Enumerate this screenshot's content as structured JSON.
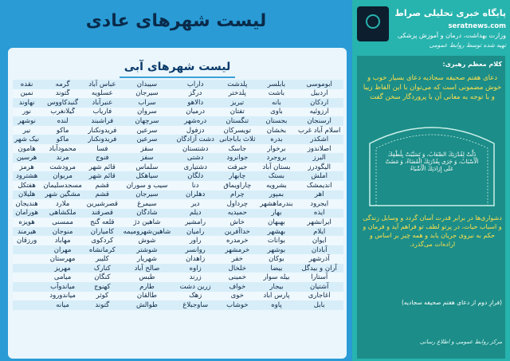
{
  "main": {
    "title": "لیست شهرهای عادی",
    "card_title": "لیست شهرهای آبی"
  },
  "cities": [
    [
      "ابوموسی",
      "بابلسر",
      "پلدشت",
      "داراب",
      "سیبدان",
      "عباس آباد",
      "گرمه",
      "نقده"
    ],
    [
      "اردبیل",
      "باشت",
      "پلدختر",
      "درگز",
      "سیرجان",
      "عسلویه",
      "گتوند",
      "نمین"
    ],
    [
      "اردکان",
      "بانه",
      "تبریز",
      "دالاهو",
      "سراب",
      "عنبرآباد",
      "گنبدکاووس",
      "نهاوند"
    ],
    [
      "ارزوئیه",
      "باوی",
      "تفتان",
      "درمیان",
      "سروان",
      "فاریاب",
      "گیلانغرب",
      "نور"
    ],
    [
      "ارسنجان",
      "بجستان",
      "تنگستان",
      "دره‌شهر",
      "سرچهان",
      "فراشبند",
      "لنده",
      "نوشهر"
    ],
    [
      "اسلام آباد غرب",
      "بخشان",
      "تویسرکان",
      "دزفول",
      "سرعین",
      "فریدونکنار",
      "ماکو",
      "نیر"
    ],
    [
      "اشکذر",
      "بدره",
      "ثلاث باباجانی",
      "دشت آزادگان",
      "سرعین",
      "فریدونکنار",
      "ماکو",
      "نیک شهر"
    ],
    [
      "اصلاندوز",
      "برخوار",
      "جاسک",
      "دشتستان",
      "سقز",
      "فسا",
      "محمودآباد",
      "هامون"
    ],
    [
      "البرز",
      "بروجرد",
      "جوانرود",
      "دشتی",
      "سفز",
      "فنوج",
      "مرند",
      "هرسین"
    ],
    [
      "الیگودرز",
      "بستان آباد",
      "جیرفت",
      "دشتیاری",
      "سلماس",
      "قائم شهر",
      "مرودشت",
      "هرمز"
    ],
    [
      "املش",
      "بستک",
      "چابهار",
      "دلگان",
      "سیاهکل",
      "قائم شهر",
      "مریوان",
      "هشترود"
    ],
    [
      "اندیمشک",
      "بشرویه",
      "چاراویماق",
      "دنا",
      "سیب و سوران",
      "قشم",
      "مسجدسلیمان",
      "هفتکل"
    ],
    [
      "اهر",
      "بمپور",
      "چرام",
      "دهلران",
      "سیرجان",
      "قشم",
      "مشگین شهر",
      "هلیلان"
    ],
    [
      "ایجرود",
      "بندرماهشهر",
      "چرداول",
      "دیر",
      "سیمرغ",
      "قصرشیرین",
      "ملارد",
      "هندیجان"
    ],
    [
      "ایذه",
      "بهار",
      "حمیدیه",
      "دیلم",
      "شادگان",
      "قصرقند",
      "ملکشاهی",
      "هورامان"
    ],
    [
      "ایرانشهر",
      "بهبهان",
      "خاش",
      "رامشیر",
      "شاهین دژ",
      "قلعه گنج",
      "ممسنی",
      "هویزه"
    ],
    [
      "ایلام",
      "بهشهر",
      "خداآفرین",
      "رامیان",
      "شاهین‌شهرومیمه",
      "کامیاران",
      "منوجان",
      "هیرمند"
    ],
    [
      "ایوان",
      "بوانات",
      "خرمدره",
      "راور",
      "شوش",
      "کردکوی",
      "مهاباد",
      "ورزقان"
    ],
    [
      "آبادان",
      "بوشهر",
      "خرمشهر",
      "روانسر",
      "شوشتر",
      "کرمانشاه",
      "مهران",
      ""
    ],
    [
      "آذرشهر",
      "بوکان",
      "خفر",
      "زاهدان",
      "شهریار",
      "کلیبر",
      "مهرستان",
      ""
    ],
    [
      "آران و بیدگل",
      "بیضا",
      "خلخال",
      "زاوه",
      "صالح آباد",
      "کنارک",
      "مهریز",
      ""
    ],
    [
      "آستارا",
      "بیله سوار",
      "خمینی",
      "زرند",
      "طبس",
      "کنگان",
      "میامی",
      ""
    ],
    [
      "آشتیان",
      "بیجار",
      "خواف",
      "زرین دشت",
      "طارم",
      "کهنوج",
      "میاندوآب",
      ""
    ],
    [
      "آغاجاری",
      "پارس آباد",
      "خوی",
      "زهک",
      "طالقان",
      "کوثر",
      "میاندورود",
      ""
    ],
    [
      "بابل",
      "پاوه",
      "خوشاب",
      "ساوجبلاغ",
      "طوالش",
      "گتوند",
      "میانه",
      ""
    ]
  ],
  "sidebar": {
    "brand": "پایگاه خبری تحلیلی صراط",
    "social": "seratnews.com",
    "sub1": "وزارت بهداشت، درمان و آموزش پزشکی",
    "sub2": "تهیه شده توسط روابط عمومی",
    "quote_head": "کلام معظم رهبری:",
    "quote_para": "دعای هفتم صحیفه سجادیه دعای بسیار خوب و خوش مضمونی است که می‌توان با این الفاظ زیبا و با توجه به معانی آن با پروردگار سخن گفت",
    "arabic": "ذَلَّتْ لِقُدْرَتِكَ الصِّعَابُ، وَ تَسَبَّبَتْ بِلُطْفِكَ الْأَسْبَابُ، وَ جَرَى بِقُدْرَتِكَ الْقَضَاءُ، وَ مَضَتْ عَلَى إِرَادَتِكَ الْأَشْيَاءُ",
    "quote_para2": "دشواری‌ها در برابر قدرت آسان گردد و وسایل زندگی و اسباب حیات، در پرتو لطف تو فراهم آید و فرمان و حکم به نیروی جریان یابد و همه چیز بر اساس و اراده‌ات می‌گذرد.",
    "source": "(فرازِ دوم از دعای هفتم صحیفه سجادیه)",
    "sign": "مرکز روابط عمومی و اطلاع رسانی"
  }
}
